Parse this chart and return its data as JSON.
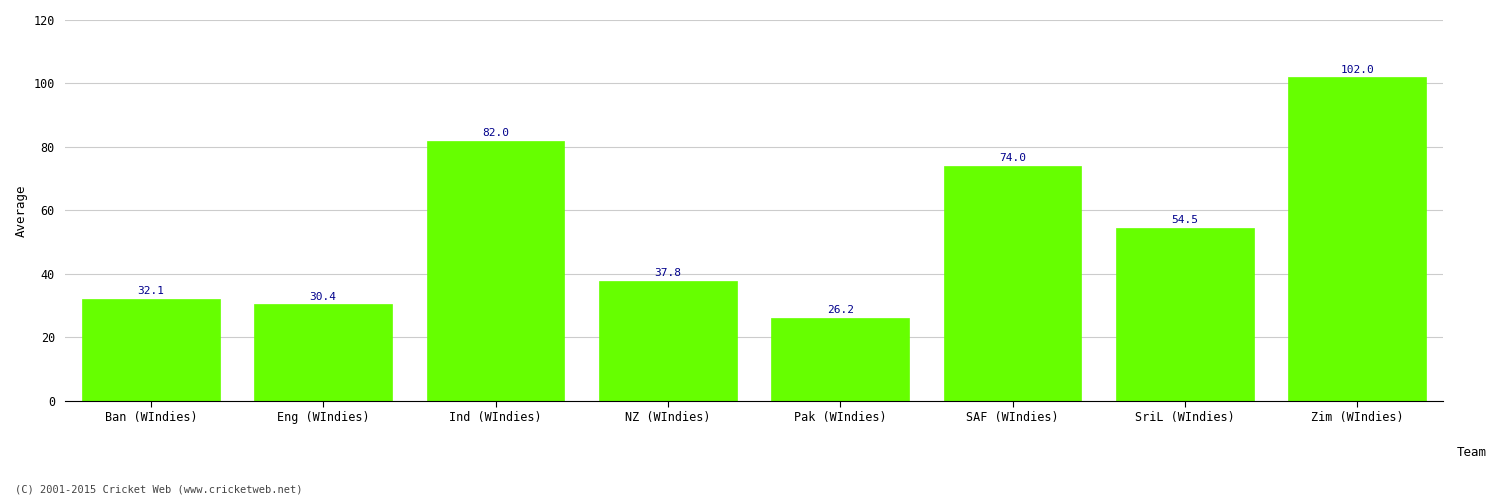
{
  "categories": [
    "Ban (WIndies)",
    "Eng (WIndies)",
    "Ind (WIndies)",
    "NZ (WIndies)",
    "Pak (WIndies)",
    "SAF (WIndies)",
    "SriL (WIndies)",
    "Zim (WIndies)"
  ],
  "values": [
    32.1,
    30.4,
    82.0,
    37.8,
    26.2,
    74.0,
    54.5,
    102.0
  ],
  "bar_color": "#66ff00",
  "bar_edge_color": "#66ff00",
  "label_color": "#00008B",
  "ylabel": "Average",
  "xlabel_right": "Team",
  "ylim": [
    0,
    120
  ],
  "yticks": [
    0,
    20,
    40,
    60,
    80,
    100,
    120
  ],
  "grid_color": "#cccccc",
  "background_color": "#ffffff",
  "fig_width": 15.0,
  "fig_height": 5.0,
  "dpi": 100,
  "label_fontsize": 8,
  "axis_fontsize": 9,
  "tick_fontsize": 8.5,
  "footer_text": "(C) 2001-2015 Cricket Web (www.cricketweb.net)"
}
